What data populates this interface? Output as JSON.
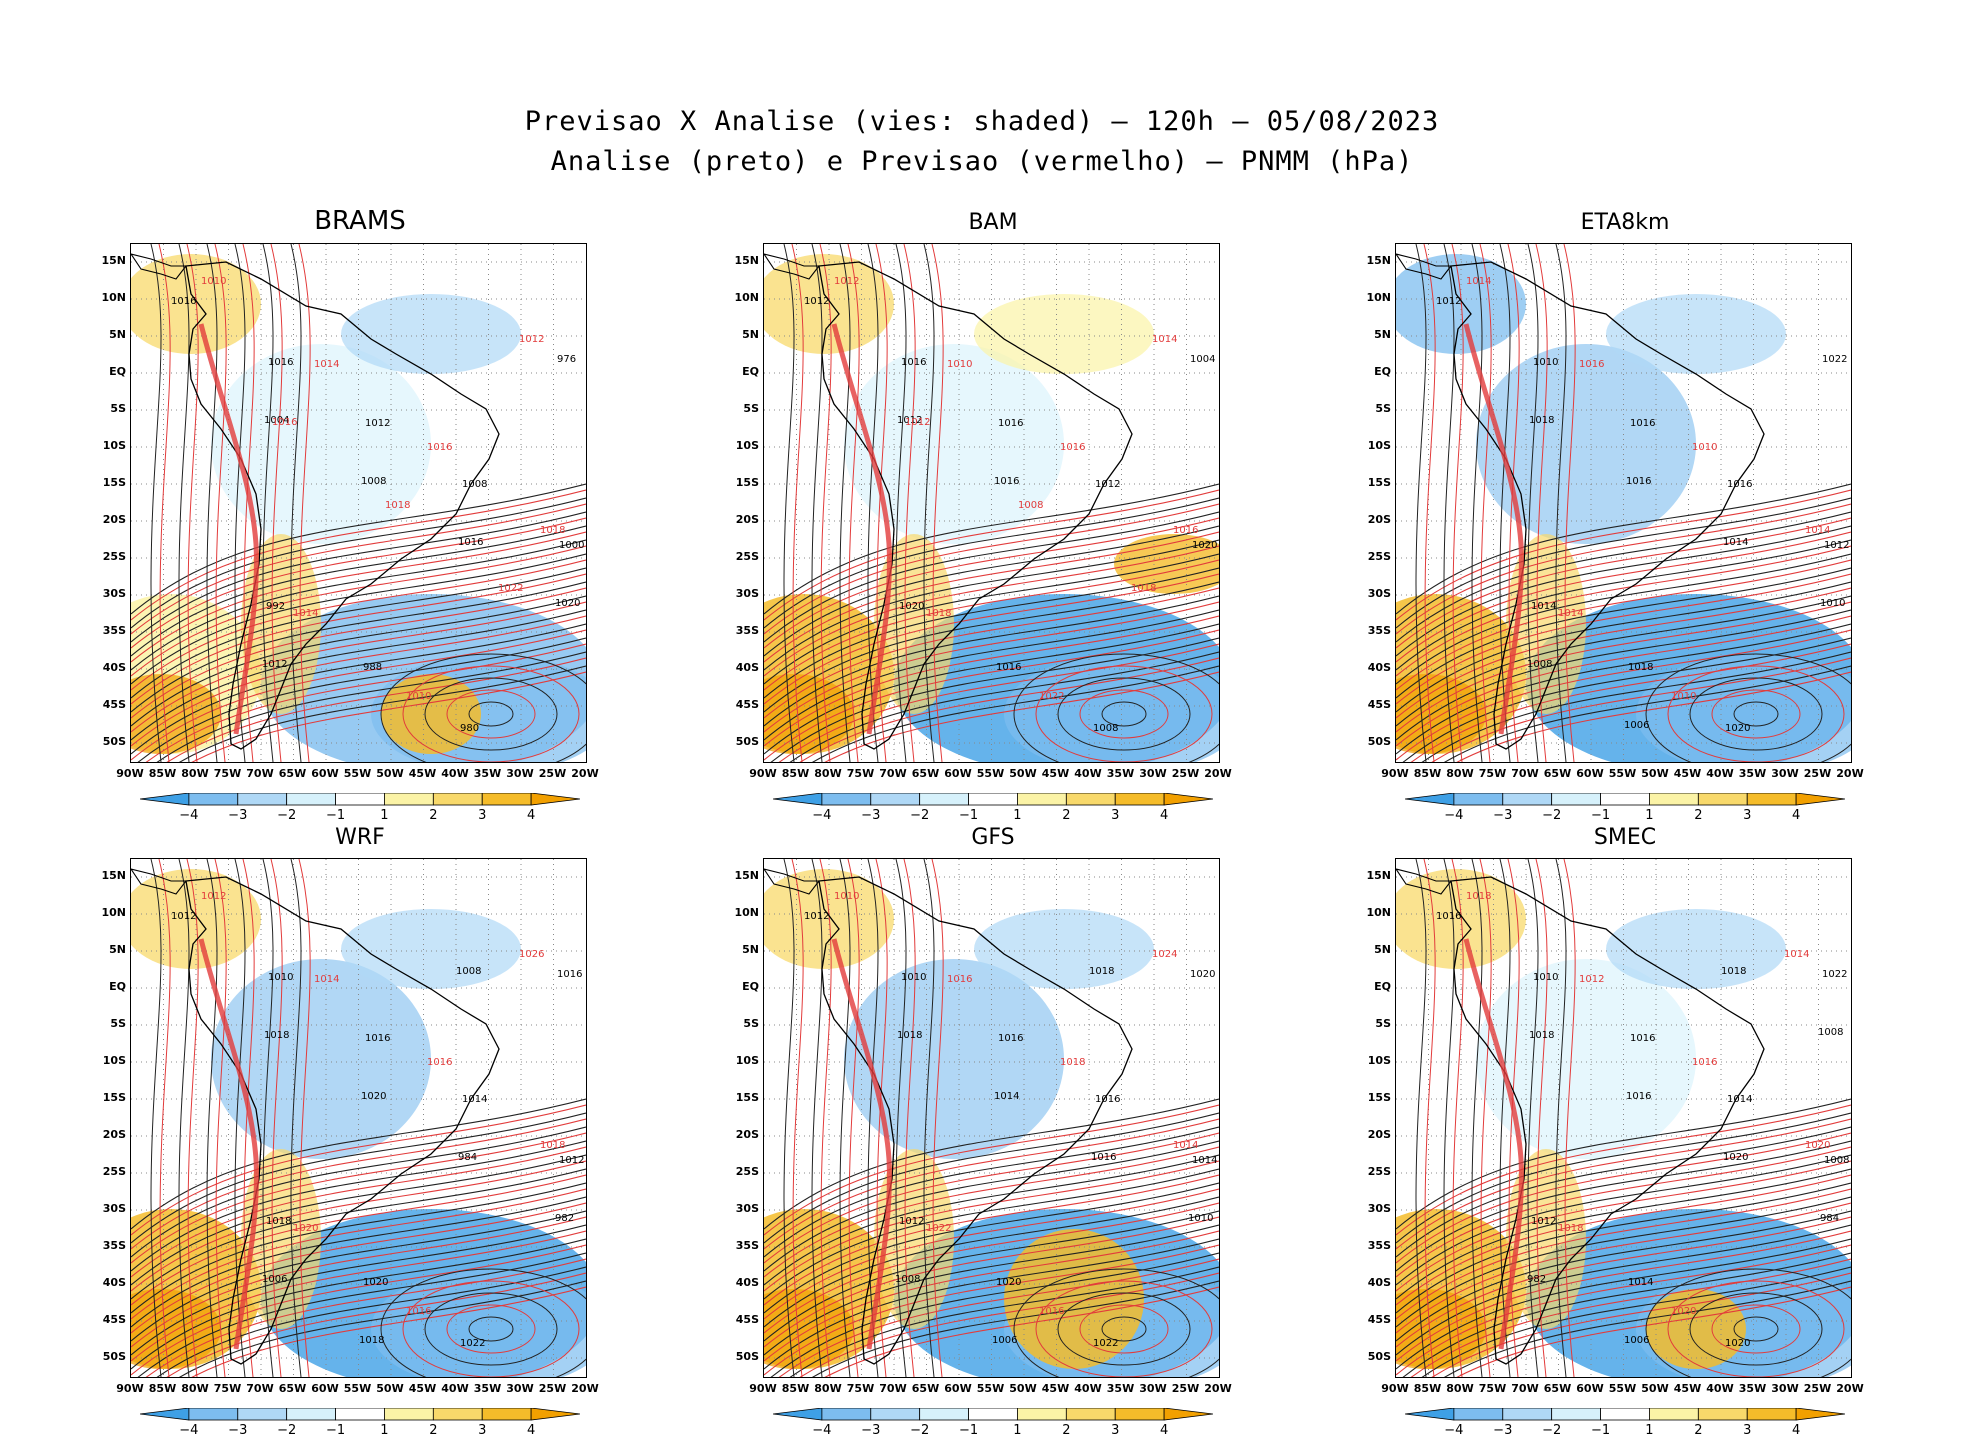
{
  "title_line1": "Previsao X Analise (vies: shaded) – 120h – 05/08/2023",
  "title_line2": "Analise (preto) e Previsao (vermelho) – PNMM (hPa)",
  "lat_labels": [
    "15N",
    "10N",
    "5N",
    "EQ",
    "5S",
    "10S",
    "15S",
    "20S",
    "25S",
    "30S",
    "35S",
    "40S",
    "45S",
    "50S"
  ],
  "lon_labels": [
    "90W",
    "85W",
    "80W",
    "75W",
    "70W",
    "65W",
    "60W",
    "55W",
    "50W",
    "45W",
    "40W",
    "35W",
    "30W",
    "25W",
    "20W"
  ],
  "colorbar": {
    "labels": [
      "−4",
      "−3",
      "−2",
      "−1",
      "1",
      "2",
      "3",
      "4"
    ],
    "colors": [
      "#3ea0e6",
      "#7dbdef",
      "#afd8f6",
      "#d6f1fb",
      "#ffffff",
      "#fbf3a6",
      "#f8d96b",
      "#f5bc2a",
      "#f2a000"
    ]
  },
  "panels": [
    {
      "name": "BRAMS",
      "labels_black": [
        "1016",
        "1016",
        "1012",
        "1008",
        "1000",
        "992",
        "988",
        "980",
        "976",
        "1004",
        "1008",
        "1016",
        "1020",
        "1012"
      ],
      "labels_red": [
        "1010",
        "1014",
        "1016",
        "1018",
        "1014",
        "1010",
        "1012",
        "1016",
        "1018",
        "1022"
      ]
    },
    {
      "name": "BAM",
      "labels_black": [
        "1012",
        "1016",
        "1016",
        "1012",
        "1020",
        "1020",
        "1016",
        "1008",
        "1004",
        "1012",
        "1016"
      ],
      "labels_red": [
        "1012",
        "1010",
        "1016",
        "1016",
        "1018",
        "1022",
        "1014",
        "1012",
        "1008",
        "1018"
      ]
    },
    {
      "name": "ETA8km",
      "labels_black": [
        "1012",
        "1010",
        "1016",
        "1016",
        "1012",
        "1014",
        "1018",
        "1020",
        "1022",
        "1018",
        "1016",
        "1014",
        "1010",
        "1008",
        "1006"
      ],
      "labels_red": [
        "1014",
        "1016",
        "1010",
        "1014",
        "1014",
        "1010"
      ]
    },
    {
      "name": "WRF",
      "labels_black": [
        "1012",
        "1010",
        "1016",
        "1014",
        "1012",
        "1018",
        "1020",
        "1022",
        "1016",
        "1018",
        "1020",
        "984",
        "982",
        "1006",
        "1018",
        "1008"
      ],
      "labels_red": [
        "1012",
        "1014",
        "1016",
        "1018",
        "1020",
        "1016",
        "1026"
      ]
    },
    {
      "name": "GFS",
      "labels_black": [
        "1012",
        "1010",
        "1016",
        "1016",
        "1014",
        "1012",
        "1020",
        "1022",
        "1020",
        "1018",
        "1014",
        "1016",
        "1010",
        "1008",
        "1006",
        "1018"
      ],
      "labels_red": [
        "1010",
        "1016",
        "1018",
        "1014",
        "1022",
        "1016",
        "1024"
      ]
    },
    {
      "name": "SMEC",
      "labels_black": [
        "1016",
        "1010",
        "1016",
        "1014",
        "1008",
        "1012",
        "1014",
        "1020",
        "1022",
        "1018",
        "1016",
        "1020",
        "984",
        "982",
        "1006",
        "1018",
        "1008"
      ],
      "labels_red": [
        "1018",
        "1012",
        "1016",
        "1020",
        "1018",
        "1020",
        "1014"
      ]
    }
  ]
}
